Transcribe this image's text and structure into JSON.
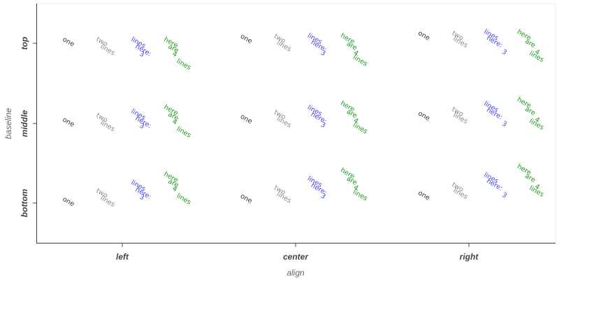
{
  "chart_data": {
    "type": "text",
    "xlabel": "align",
    "ylabel": "baseline",
    "x_categories": [
      "left",
      "center",
      "right"
    ],
    "y_categories": [
      "top",
      "middle",
      "bottom"
    ],
    "text_angle_deg": 30,
    "grid": false,
    "series": [
      {
        "lines": [
          "one"
        ],
        "color": "#333333"
      },
      {
        "lines": [
          "two",
          "lines"
        ],
        "color": "#888888"
      },
      {
        "lines": [
          "lines",
          "here:",
          "3"
        ],
        "color": "#4444ee"
      },
      {
        "lines": [
          "here",
          "are",
          "4",
          "lines"
        ],
        "color": "#229922"
      }
    ]
  }
}
